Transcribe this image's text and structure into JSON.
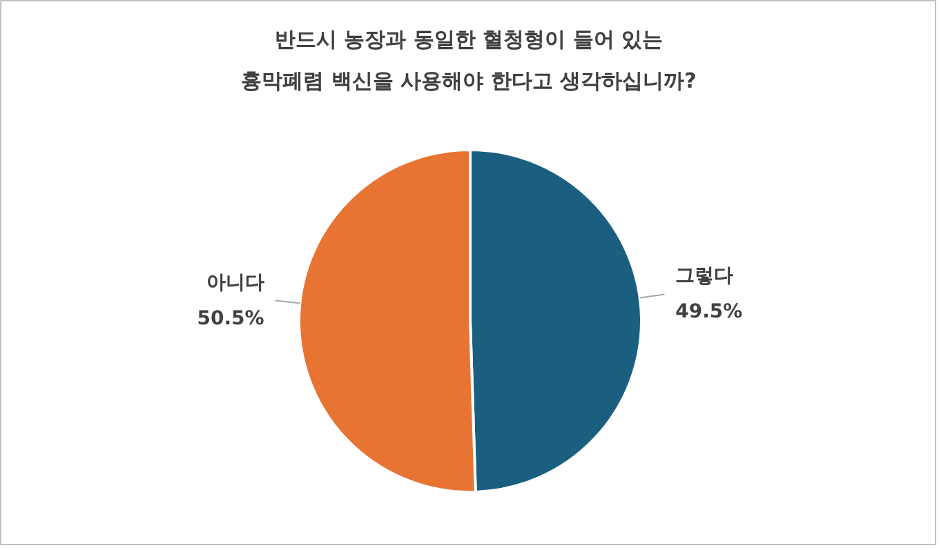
{
  "chart_data": {
    "type": "pie",
    "title": "반드시 농장과 동일한 혈청형이 들어 있는\n흉막폐렴 백신을 사용해야 한다고 생각하십니까?",
    "categories": [
      "그렇다",
      "아니다"
    ],
    "values": [
      49.5,
      50.5
    ],
    "colors": [
      "#1a5f80",
      "#e87433"
    ],
    "value_labels": [
      "49.5%",
      "50.5%"
    ]
  }
}
